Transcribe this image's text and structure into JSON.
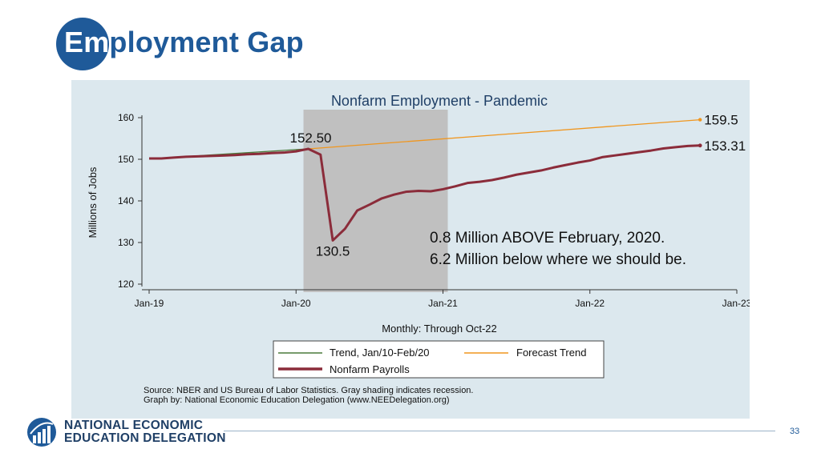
{
  "slide": {
    "title_lead": "Em",
    "title_rest": "ployment Gap",
    "page_number": "33"
  },
  "colors": {
    "brand_blue": "#1f5a99",
    "panel_bg": "#dce8ee",
    "recession_gray": "#c0c0c0",
    "trend_green": "#4a7a3a",
    "forecast_orange": "#f0961e",
    "payrolls_maroon": "#8b2c3a"
  },
  "annotation": {
    "line1": "0.8 Million ABOVE February, 2020.",
    "line2": "6.2 Million below where we should be."
  },
  "logo": {
    "line1": "NATIONAL ECONOMIC",
    "line2": "EDUCATION DELEGATION"
  },
  "chart_data": {
    "type": "line",
    "title": "Nonfarm Employment - Pandemic",
    "xlabel": "Monthly: Through Oct-22",
    "ylabel": "Millions of Jobs",
    "ylim": [
      120,
      160
    ],
    "yticks": [
      120,
      130,
      140,
      150,
      160
    ],
    "xlim": [
      "Jan-19",
      "Jan-23"
    ],
    "xticks": [
      "Jan-19",
      "Jan-20",
      "Jan-21",
      "Jan-22",
      "Jan-23"
    ],
    "grid": false,
    "recession_shading": {
      "start": "Feb-20",
      "end": "Jan-21"
    },
    "series": [
      {
        "name": "Trend, Jan/10-Feb/20",
        "color": "#4a7a3a",
        "points": [
          [
            "Jan-19",
            150.1
          ],
          [
            "Feb-20",
            152.5
          ]
        ]
      },
      {
        "name": "Forecast Trend",
        "color": "#f0961e",
        "points": [
          [
            "Feb-20",
            152.5
          ],
          [
            "Oct-22",
            159.5
          ]
        ]
      },
      {
        "name": "Nonfarm Payrolls",
        "color": "#8b2c3a",
        "x": [
          "Jan-19",
          "Feb-19",
          "Mar-19",
          "Apr-19",
          "May-19",
          "Jun-19",
          "Jul-19",
          "Aug-19",
          "Sep-19",
          "Oct-19",
          "Nov-19",
          "Dec-19",
          "Jan-20",
          "Feb-20",
          "Mar-20",
          "Apr-20",
          "May-20",
          "Jun-20",
          "Jul-20",
          "Aug-20",
          "Sep-20",
          "Oct-20",
          "Nov-20",
          "Dec-20",
          "Jan-21",
          "Feb-21",
          "Mar-21",
          "Apr-21",
          "May-21",
          "Jun-21",
          "Jul-21",
          "Aug-21",
          "Sep-21",
          "Oct-21",
          "Nov-21",
          "Dec-21",
          "Jan-22",
          "Feb-22",
          "Mar-22",
          "Apr-22",
          "May-22",
          "Jun-22",
          "Jul-22",
          "Aug-22",
          "Sep-22",
          "Oct-22"
        ],
        "values": [
          150.2,
          150.2,
          150.4,
          150.6,
          150.7,
          150.8,
          150.9,
          151.0,
          151.2,
          151.3,
          151.5,
          151.6,
          151.9,
          152.5,
          151.1,
          130.5,
          133.3,
          137.7,
          139.1,
          140.6,
          141.5,
          142.2,
          142.4,
          142.3,
          142.8,
          143.5,
          144.3,
          144.6,
          145.0,
          145.6,
          146.3,
          146.8,
          147.3,
          148.0,
          148.6,
          149.2,
          149.7,
          150.5,
          150.9,
          151.3,
          151.7,
          152.1,
          152.6,
          152.9,
          153.2,
          153.31
        ]
      }
    ],
    "annotations": [
      {
        "text": "152.50",
        "x": "Feb-20",
        "y": 152.5
      },
      {
        "text": "130.5",
        "x": "Apr-20",
        "y": 130.5
      },
      {
        "text": "159.5",
        "x": "Oct-22",
        "y": 159.5
      },
      {
        "text": "153.31",
        "x": "Oct-22",
        "y": 153.31
      }
    ],
    "legend": [
      {
        "label": "Trend, Jan/10-Feb/20",
        "color": "#4a7a3a"
      },
      {
        "label": "Forecast Trend",
        "color": "#f0961e"
      },
      {
        "label": "Nonfarm Payrolls",
        "color": "#8b2c3a"
      }
    ],
    "legend_position": "bottom",
    "source_line1": "Source: NBER and US Bureau of Labor Statistics. Gray shading indicates recession.",
    "source_line2": "Graph by: National Economic Education Delegation (www.NEEDelegation.org)"
  }
}
